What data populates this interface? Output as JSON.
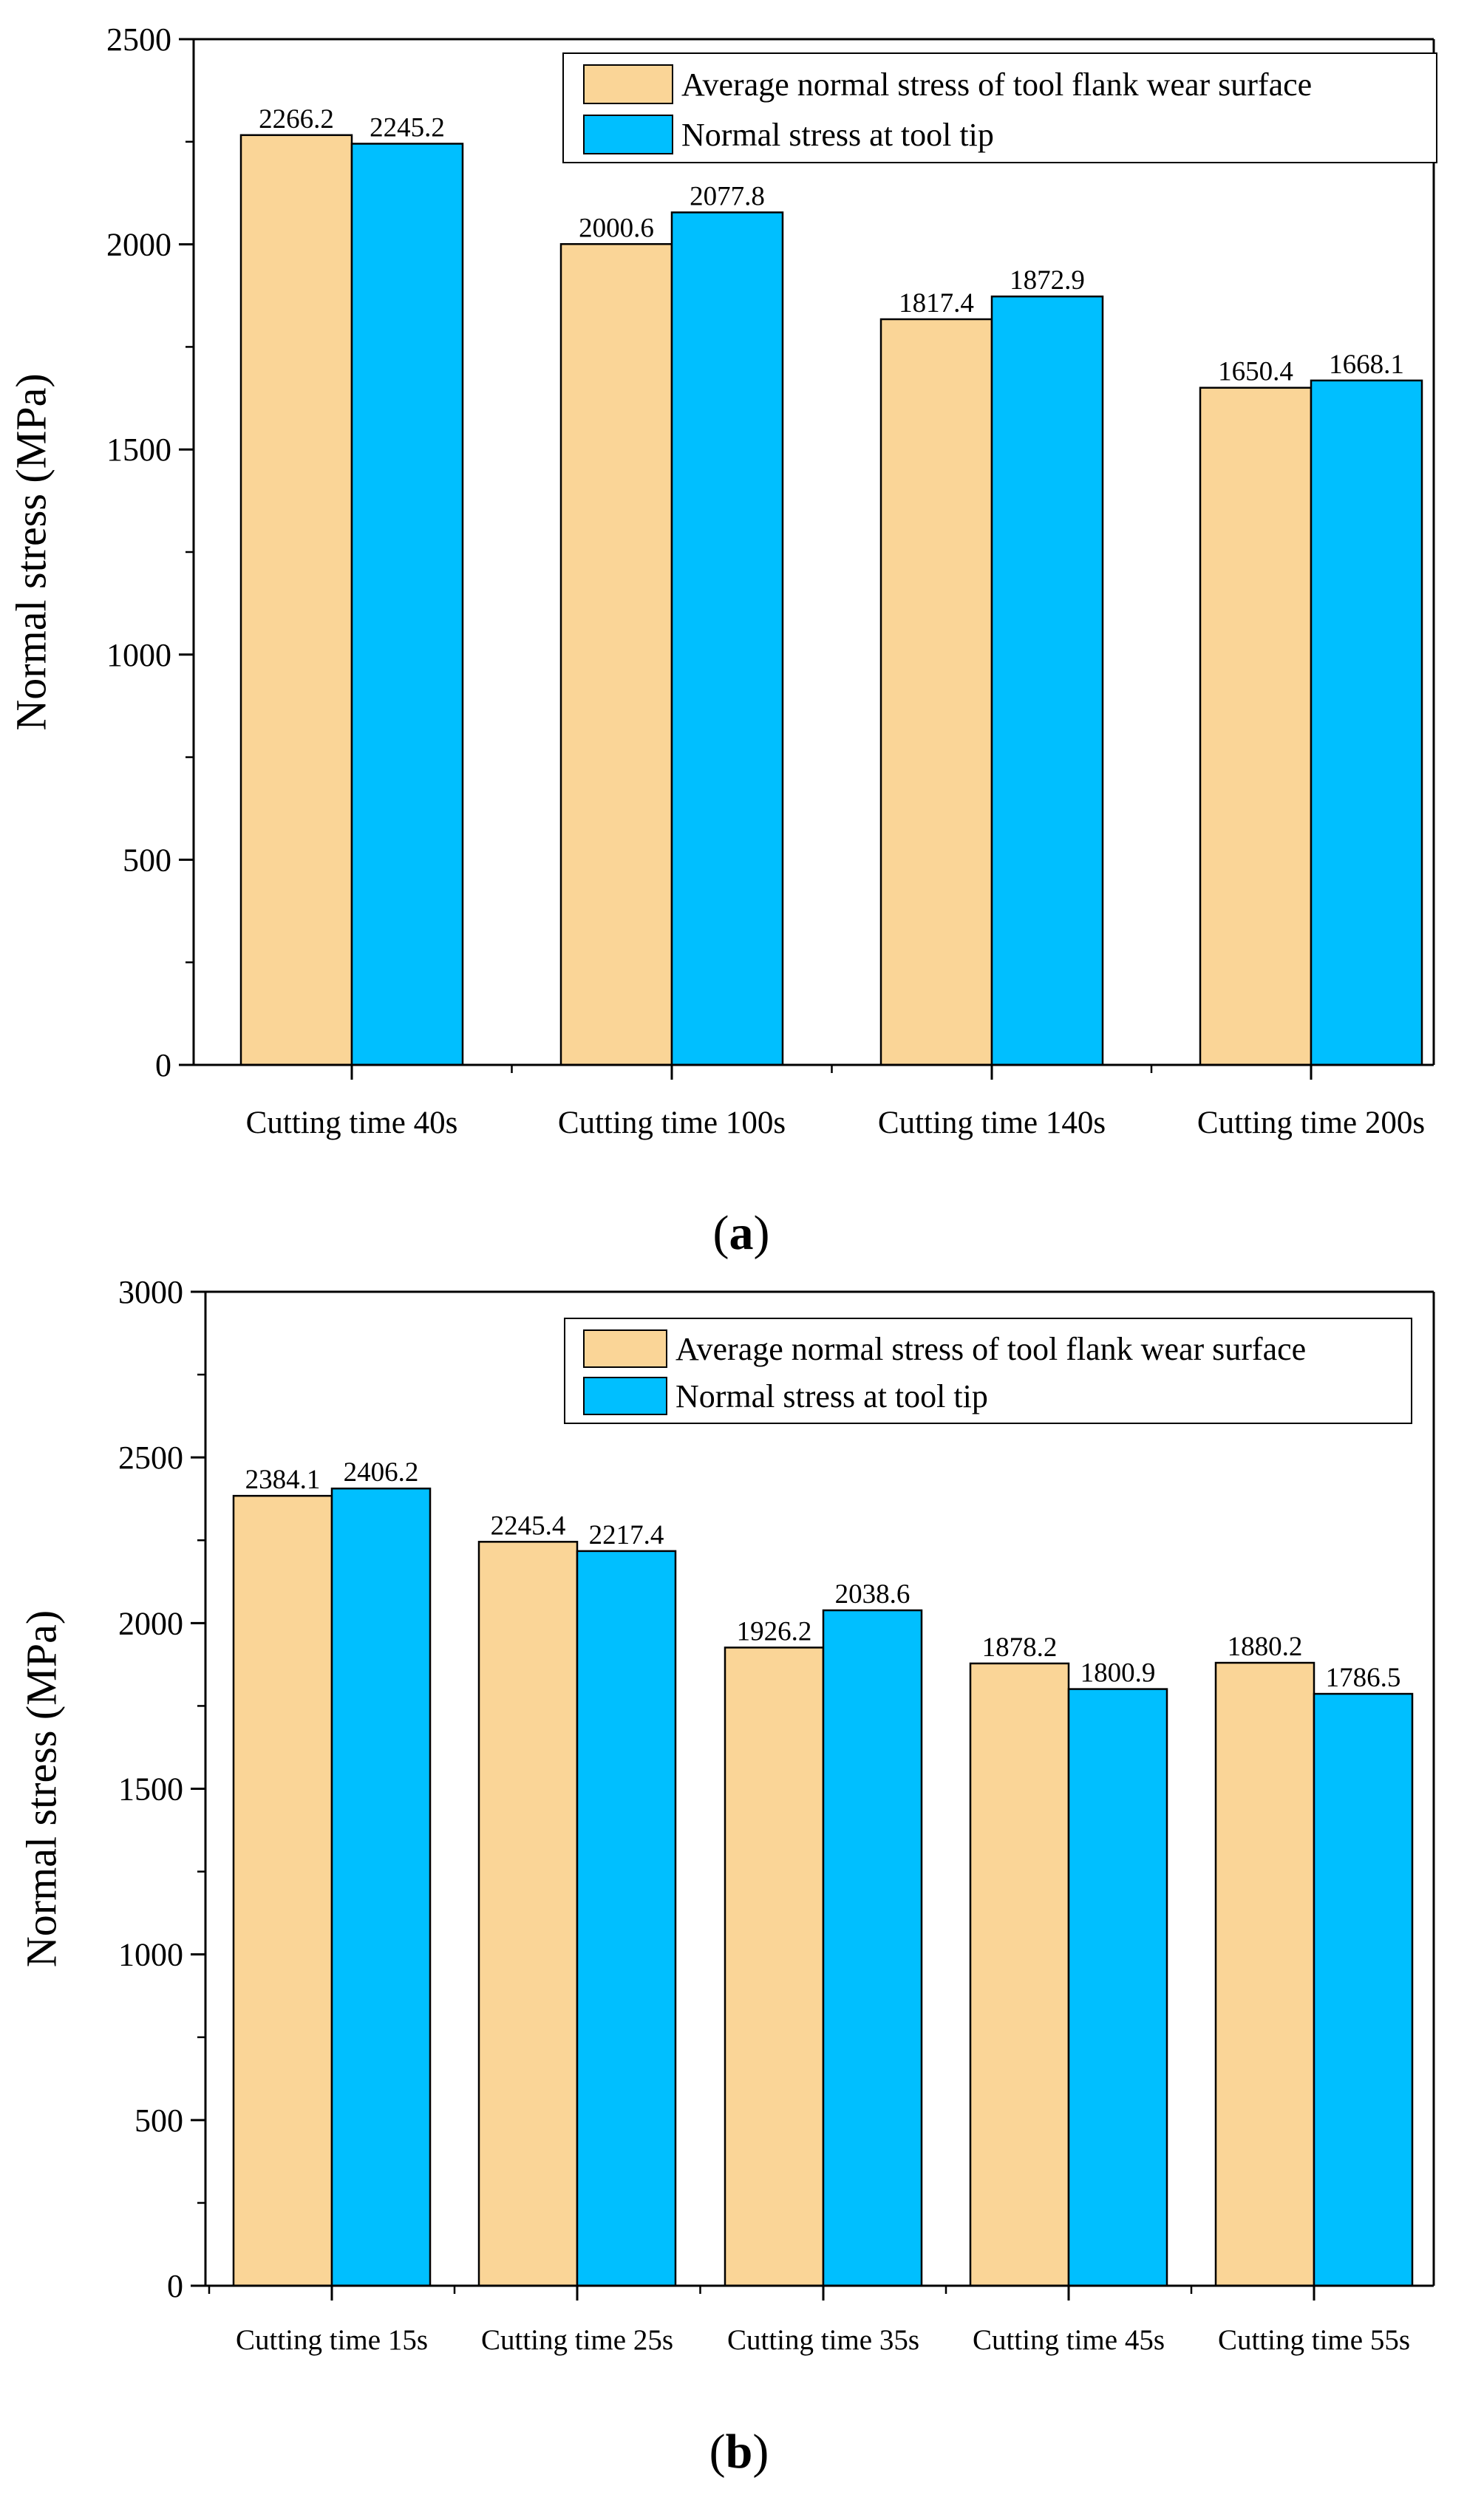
{
  "colors": {
    "series_avg": "#FAD597",
    "series_tip": "#00BFFF",
    "axis": "#000000"
  },
  "chart_data": [
    {
      "id": "a",
      "type": "bar",
      "panel_label": "a",
      "title": "",
      "xlabel": "",
      "ylabel": "Normal stress (MPa)",
      "ylim": [
        0,
        2500
      ],
      "yticks": [
        0,
        500,
        1000,
        1500,
        2000,
        2500
      ],
      "categories": [
        "Cutting time 40s",
        "Cutting time 100s",
        "Cutting time 140s",
        "Cutting time 200s"
      ],
      "series": [
        {
          "name": "Average normal stress of tool flank wear surface",
          "values": [
            2266.2,
            2000.6,
            1817.4,
            1650.4
          ],
          "labels": [
            "2266.2",
            "2000.6",
            "1817.4",
            "1650.4"
          ]
        },
        {
          "name": "Normal stress at tool tip",
          "values": [
            2245.2,
            2077.8,
            1872.9,
            1668.1
          ],
          "labels": [
            "2245.2",
            "2077.8",
            "1872.9",
            "1668.1"
          ]
        }
      ],
      "legend_position": "top-right",
      "grid": false
    },
    {
      "id": "b",
      "type": "bar",
      "panel_label": "b",
      "title": "",
      "xlabel": "",
      "ylabel": "Normal stress (MPa)",
      "ylim": [
        0,
        3000
      ],
      "yticks": [
        0,
        500,
        1000,
        1500,
        2000,
        2500,
        3000
      ],
      "categories": [
        "Cutting time 15s",
        "Cutting time 25s",
        "Cutting time 35s",
        "Cutting time 45s",
        "Cutting time 55s"
      ],
      "series": [
        {
          "name": "Average normal stress of tool flank wear surface",
          "values": [
            2384.1,
            2245.4,
            1926.2,
            1878.2,
            1880.2
          ],
          "labels": [
            "2384.1",
            "2245.4",
            "1926.2",
            "1878.2",
            "1880.2"
          ]
        },
        {
          "name": "Normal stress at tool tip",
          "values": [
            2406.2,
            2217.4,
            2038.6,
            1800.9,
            1786.5
          ],
          "labels": [
            "2406.2",
            "2217.4",
            "2038.6",
            "1800.9",
            "1786.5"
          ]
        }
      ],
      "legend_position": "top-right",
      "grid": false
    }
  ]
}
